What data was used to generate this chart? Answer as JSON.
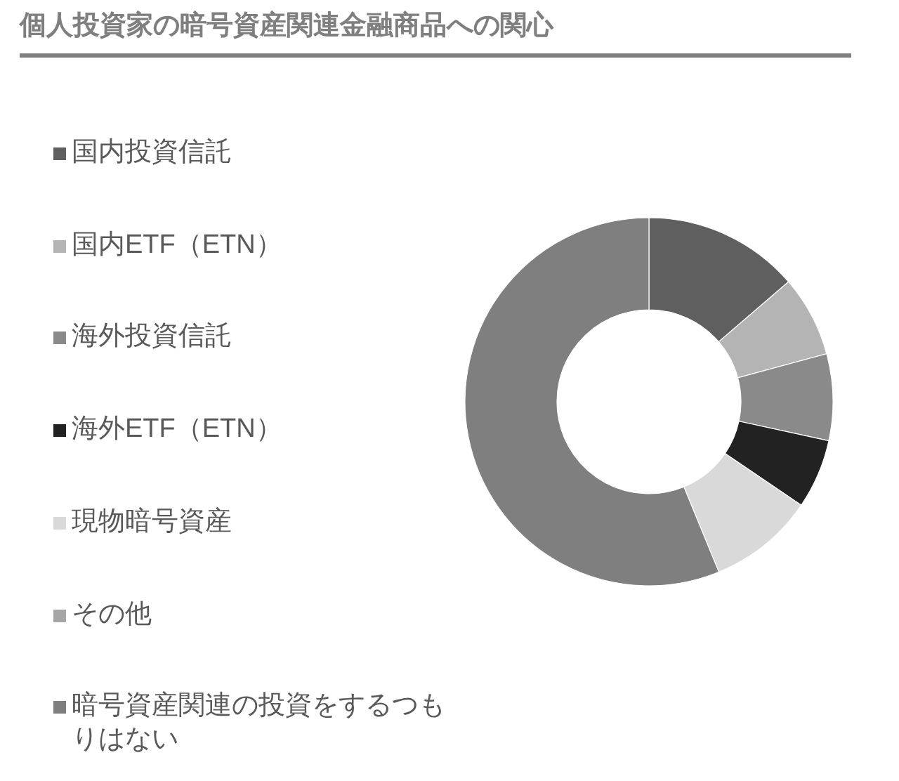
{
  "chart_data": {
    "type": "donut",
    "title": "個人投資家の暗号資産関連金融商品への関心",
    "categories": [
      "国内投資信託",
      "国内ETF（ETN）",
      "海外投資信託",
      "海外ETF（ETN）",
      "現物暗号資産",
      "その他",
      "暗号資産関連の投資をするつもりはない"
    ],
    "values": [
      13.7,
      7.1,
      7.6,
      6.1,
      9.3,
      0,
      56.2
    ],
    "colors": [
      "#5f5f5f",
      "#b4b4b4",
      "#8a8a8a",
      "#222222",
      "#d9d9d9",
      "#a6a6a6",
      "#7f7f7f"
    ],
    "legend": "left"
  }
}
